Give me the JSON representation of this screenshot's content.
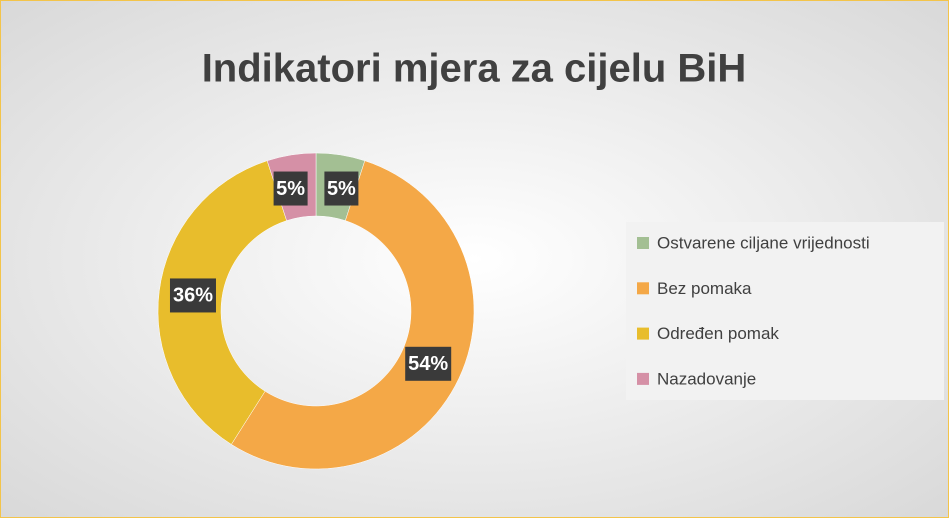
{
  "chart_data": {
    "type": "donut",
    "title": "Indikatori mjera za cijelu BiH",
    "categories": [
      "Ostvarene ciljane vrijednosti",
      "Bez pomaka",
      "Određen pomak",
      "Nazadovanje"
    ],
    "values": [
      5,
      54,
      36,
      5
    ],
    "value_labels": [
      "5%",
      "54%",
      "36%",
      "5%"
    ],
    "colors": [
      "#a3bf93",
      "#f4a847",
      "#e8bd2c",
      "#d590a6"
    ],
    "legend": "right"
  }
}
